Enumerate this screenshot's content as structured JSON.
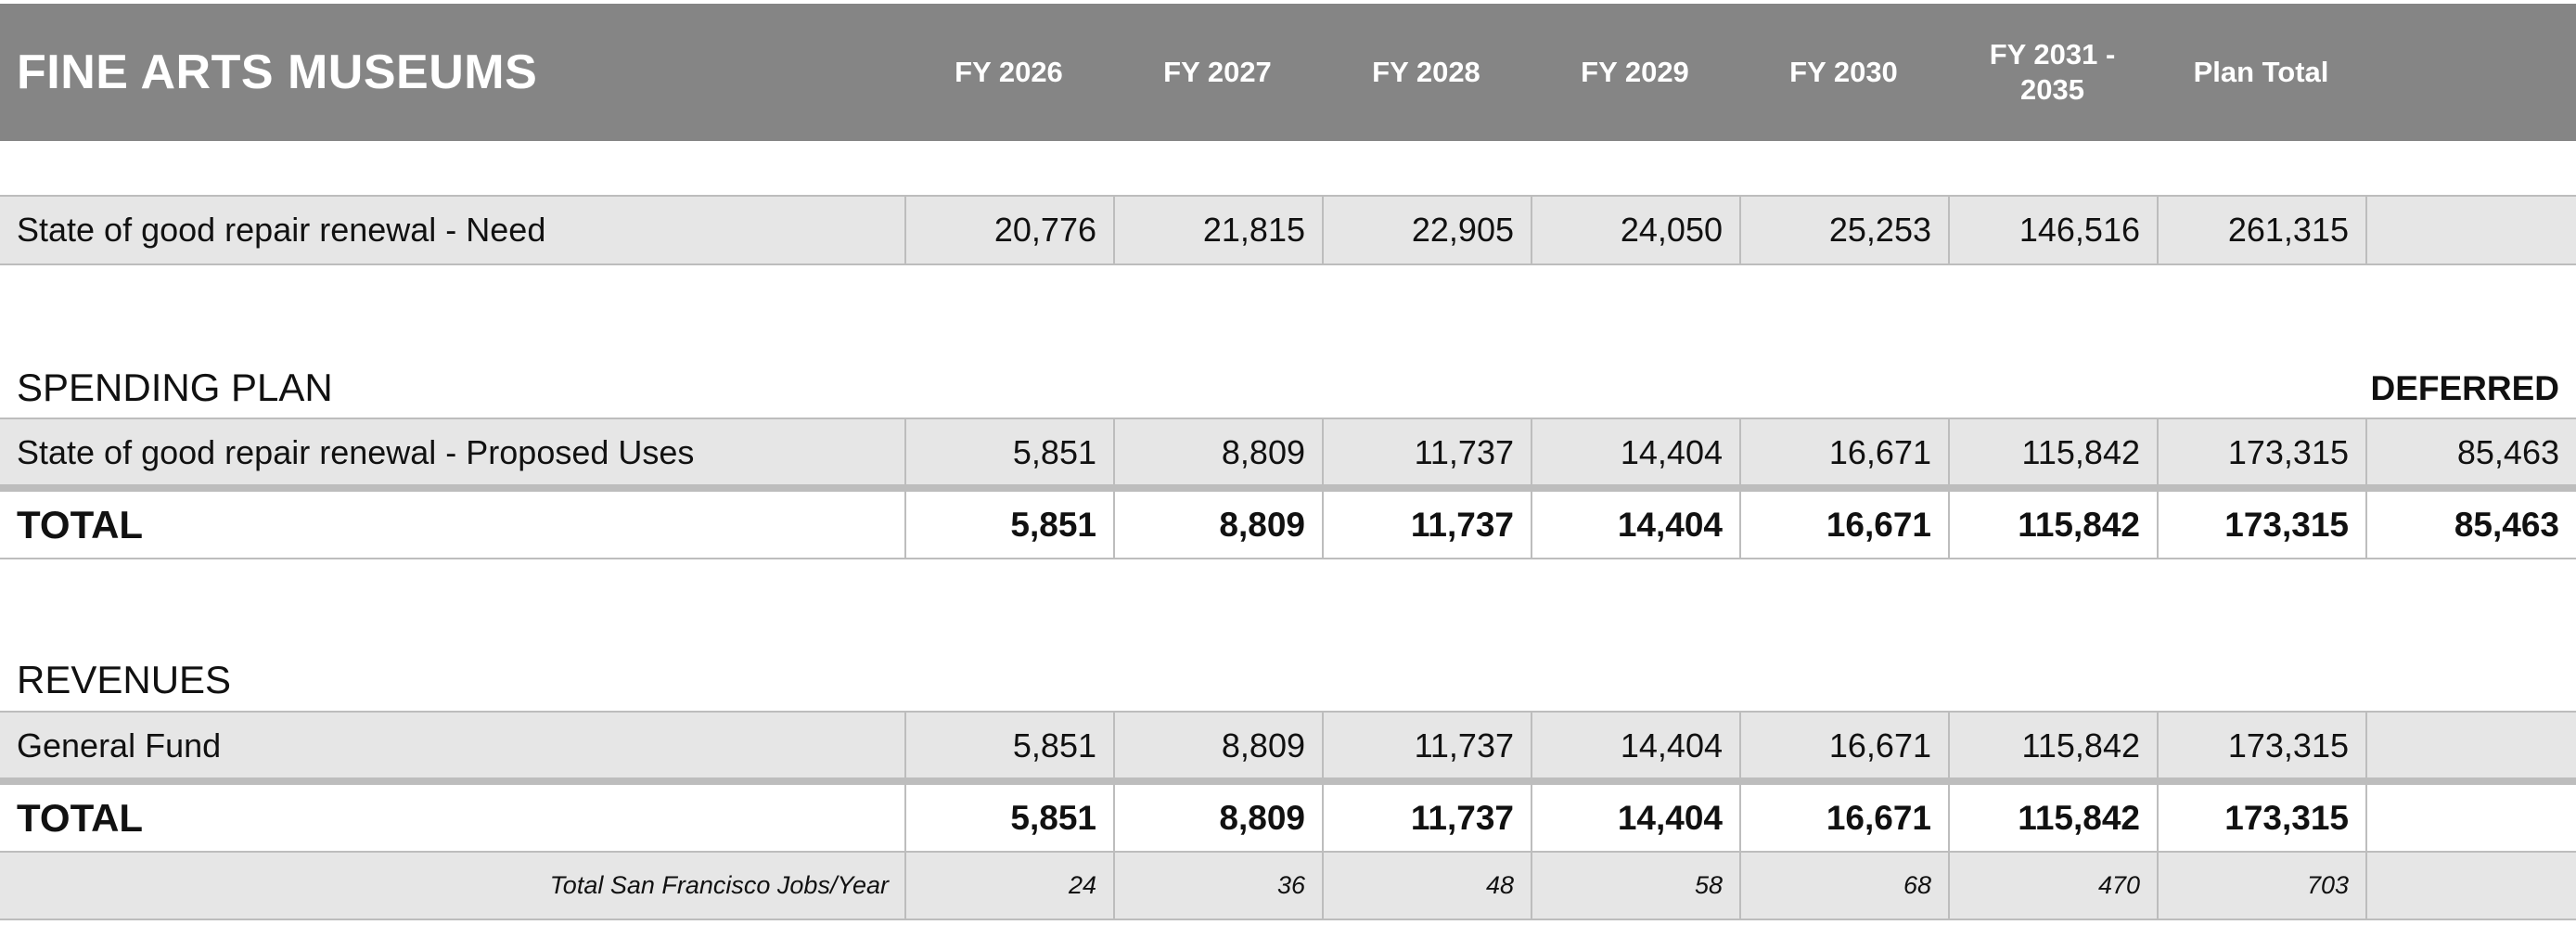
{
  "header": {
    "title": "FINE ARTS MUSEUMS",
    "columns": [
      "FY 2026",
      "FY 2027",
      "FY 2028",
      "FY 2029",
      "FY 2030",
      "FY 2031 - 2035",
      "Plan Total"
    ]
  },
  "need_row": {
    "label": "State of good repair renewal - Need",
    "values": [
      "20,776",
      "21,815",
      "22,905",
      "24,050",
      "25,253",
      "146,516",
      "261,315",
      ""
    ]
  },
  "spending_plan": {
    "title": "SPENDING PLAN",
    "deferred_label": "DEFERRED",
    "proposed": {
      "label": "State of good repair renewal - Proposed Uses",
      "values": [
        "5,851",
        "8,809",
        "11,737",
        "14,404",
        "16,671",
        "115,842",
        "173,315",
        "85,463"
      ]
    },
    "total": {
      "label": "TOTAL",
      "values": [
        "5,851",
        "8,809",
        "11,737",
        "14,404",
        "16,671",
        "115,842",
        "173,315",
        "85,463"
      ]
    }
  },
  "revenues": {
    "title": "REVENUES",
    "general_fund": {
      "label": "General Fund",
      "values": [
        "5,851",
        "8,809",
        "11,737",
        "14,404",
        "16,671",
        "115,842",
        "173,315",
        ""
      ]
    },
    "total": {
      "label": "TOTAL",
      "values": [
        "5,851",
        "8,809",
        "11,737",
        "14,404",
        "16,671",
        "115,842",
        "173,315",
        ""
      ]
    },
    "jobs": {
      "label": "Total San Francisco Jobs/Year",
      "values": [
        "24",
        "36",
        "48",
        "58",
        "68",
        "470",
        "703",
        ""
      ]
    }
  }
}
